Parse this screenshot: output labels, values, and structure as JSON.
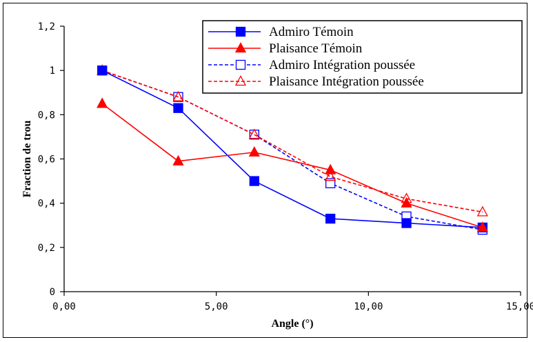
{
  "chart_data": {
    "type": "line",
    "title": "",
    "xlabel": "Angle (°)",
    "ylabel": "Fraction de trou",
    "xlim": [
      0,
      15
    ],
    "ylim": [
      0,
      1.2
    ],
    "x_ticks": [
      {
        "value": 0,
        "label": "0,00"
      },
      {
        "value": 5,
        "label": "5,00"
      },
      {
        "value": 10,
        "label": "10,00"
      },
      {
        "value": 15,
        "label": "15,00"
      }
    ],
    "y_ticks": [
      {
        "value": 0,
        "label": "0"
      },
      {
        "value": 0.2,
        "label": "0,2"
      },
      {
        "value": 0.4,
        "label": "0,4"
      },
      {
        "value": 0.6,
        "label": "0,6"
      },
      {
        "value": 0.8,
        "label": "0,8"
      },
      {
        "value": 1.0,
        "label": "1"
      },
      {
        "value": 1.2,
        "label": "1,2"
      }
    ],
    "grid": false,
    "legend_position": "top-right",
    "series": [
      {
        "name": "Admiro Témoin",
        "color": "#0000ff",
        "line_style": "solid",
        "marker": "filled-square",
        "x": [
          1.25,
          3.75,
          6.25,
          8.75,
          11.25,
          13.75
        ],
        "values": [
          1.0,
          0.83,
          0.5,
          0.33,
          0.31,
          0.29
        ]
      },
      {
        "name": "Plaisance Témoin",
        "color": "#ff0000",
        "line_style": "solid",
        "marker": "filled-triangle",
        "x": [
          1.25,
          3.75,
          6.25,
          8.75,
          11.25,
          13.75
        ],
        "values": [
          0.85,
          0.59,
          0.63,
          0.55,
          0.4,
          0.29
        ]
      },
      {
        "name": "Admiro Intégration poussée",
        "color": "#0000ff",
        "line_style": "dashed",
        "marker": "open-square",
        "x": [
          1.25,
          3.75,
          6.25,
          8.75,
          11.25,
          13.75
        ],
        "values": [
          1.0,
          0.88,
          0.71,
          0.49,
          0.34,
          0.28
        ]
      },
      {
        "name": "Plaisance Intégration poussée",
        "color": "#ff0000",
        "line_style": "dashed",
        "marker": "open-triangle",
        "x": [
          1.25,
          3.75,
          6.25,
          8.75,
          11.25,
          13.75
        ],
        "values": [
          1.0,
          0.88,
          0.71,
          0.52,
          0.42,
          0.36
        ]
      }
    ]
  }
}
